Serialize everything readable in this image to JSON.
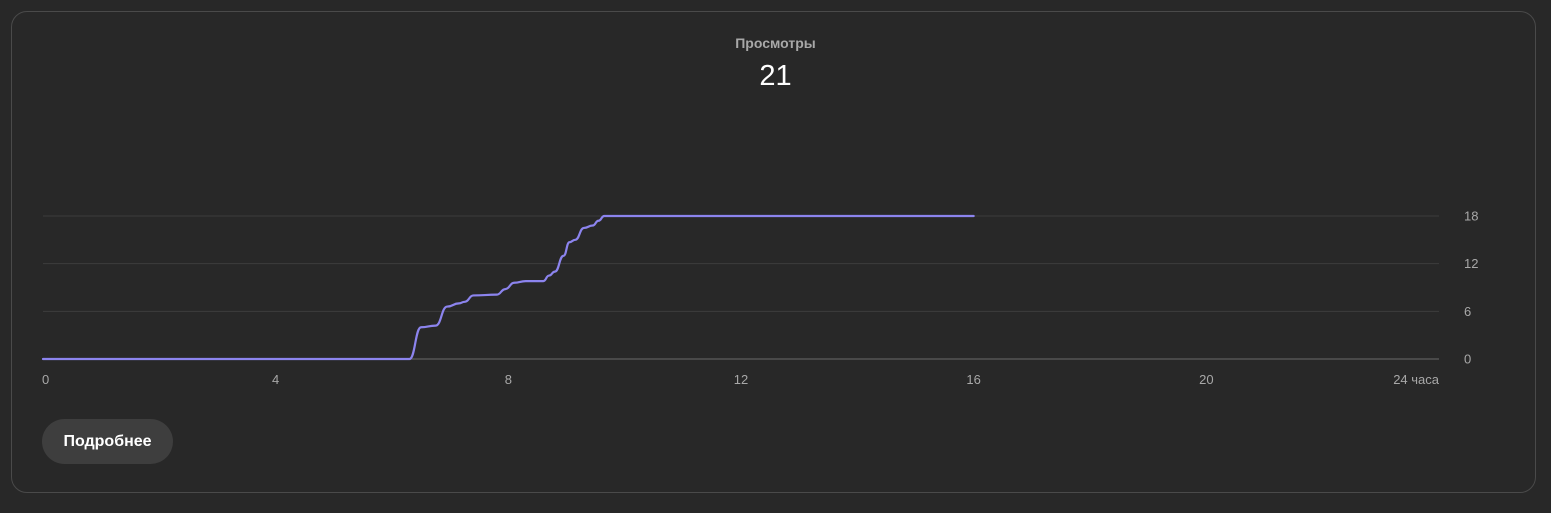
{
  "stat": {
    "label": "Просмотры",
    "value": "21"
  },
  "button": {
    "more_label": "Подробнее"
  },
  "colors": {
    "line": "#8c84ee",
    "grid": "#3c3c3c",
    "baseline": "#6a6a6a",
    "tick_text": "#a8a8a8"
  },
  "chart_data": {
    "type": "line",
    "title": "",
    "xlabel": "",
    "ylabel": "",
    "xlim": [
      0,
      24
    ],
    "ylim": [
      0,
      18
    ],
    "x_ticks": [
      0,
      4,
      8,
      12,
      16,
      20,
      24
    ],
    "x_tick_labels": [
      "0",
      "4",
      "8",
      "12",
      "16",
      "20",
      "24 часа"
    ],
    "y_ticks": [
      0,
      6,
      12,
      18
    ],
    "y_tick_labels": [
      "0",
      "6",
      "12",
      "18"
    ],
    "y_axis_side": "right",
    "grid": true,
    "legend": "none",
    "series": [
      {
        "x": [
          0,
          6.2,
          6.3,
          6.5,
          6.75,
          6.95,
          7.15,
          7.25,
          7.4,
          7.8,
          7.95,
          8.1,
          8.3,
          8.6,
          8.7,
          8.8,
          8.95,
          9.05,
          9.15,
          9.3,
          9.45,
          9.55,
          9.65,
          12,
          16
        ],
        "y": [
          0,
          0,
          0,
          4,
          4.2,
          6.6,
          7.0,
          7.2,
          8,
          8.1,
          8.8,
          9.6,
          9.8,
          9.8,
          10.5,
          11,
          13,
          14.7,
          15,
          16.5,
          16.8,
          17.4,
          18,
          18,
          18
        ]
      }
    ]
  }
}
